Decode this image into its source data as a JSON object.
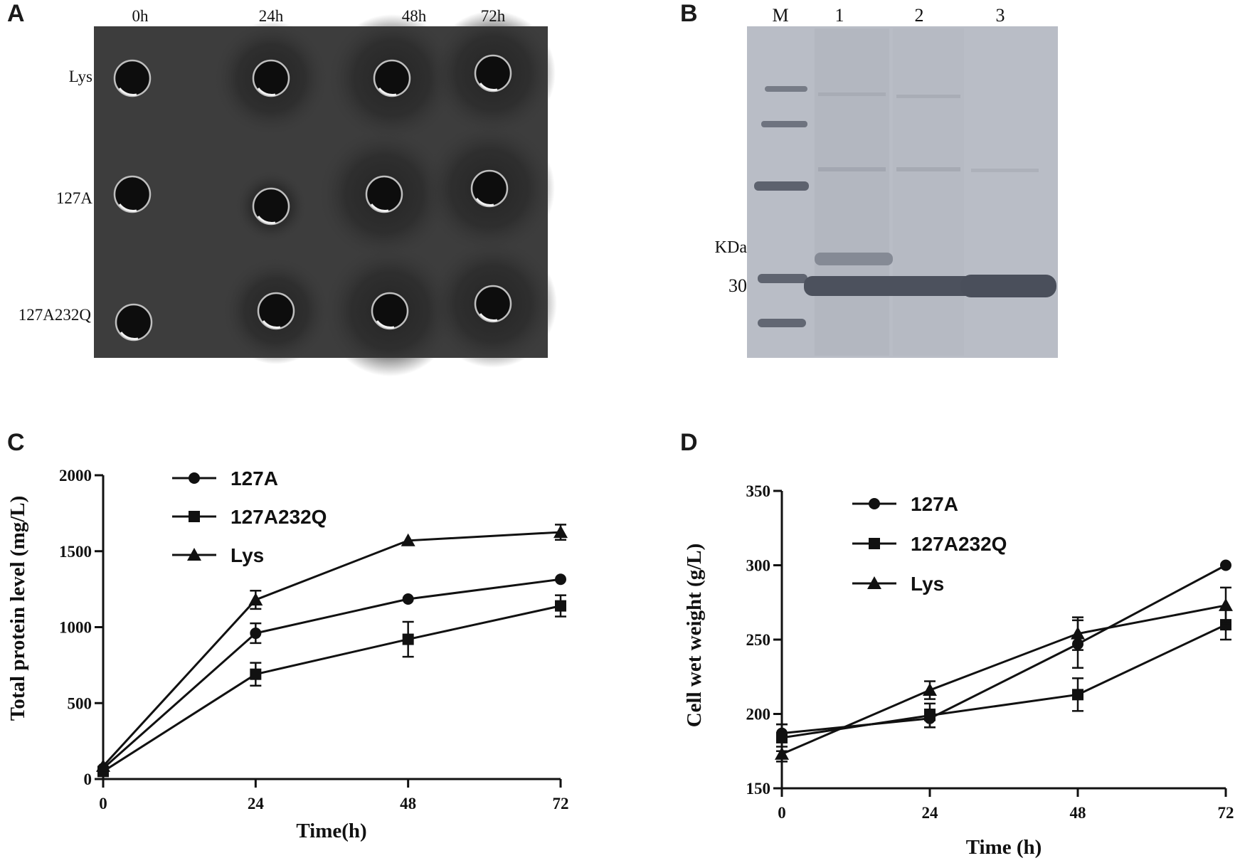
{
  "panels": {
    "a": {
      "letter": "A",
      "time_labels": [
        "0h",
        "24h",
        "48h",
        "72h"
      ],
      "row_labels": [
        "Lys",
        "127A",
        "127A232Q"
      ]
    },
    "b": {
      "letter": "B",
      "lane_labels": [
        "M",
        "1",
        "2",
        "3"
      ],
      "unit_label": "KDa",
      "marker_value": "30"
    },
    "c": {
      "letter": "C"
    },
    "d": {
      "letter": "D"
    }
  },
  "chart_data": [
    {
      "type": "line",
      "xlabel": "Time(h)",
      "ylabel": "Total protein level (mg/L)",
      "x": [
        0,
        24,
        48,
        72
      ],
      "xticks": [
        "0",
        "24",
        "48",
        "72"
      ],
      "xlim": [
        0,
        72
      ],
      "ylim": [
        0,
        2000
      ],
      "yticks": [
        "0",
        "500",
        "1000",
        "1500",
        "2000"
      ],
      "legend_position": "top-left",
      "series": [
        {
          "name": "127A",
          "marker": "circle",
          "values": [
            70,
            960,
            1185,
            1315
          ],
          "errors": [
            0,
            65,
            0,
            0
          ]
        },
        {
          "name": "127A232Q",
          "marker": "square",
          "values": [
            50,
            690,
            920,
            1140
          ],
          "errors": [
            0,
            75,
            115,
            70
          ]
        },
        {
          "name": "Lys",
          "marker": "triangle",
          "values": [
            85,
            1180,
            1570,
            1625
          ],
          "errors": [
            0,
            60,
            0,
            50
          ]
        }
      ]
    },
    {
      "type": "line",
      "xlabel": "Time (h)",
      "ylabel": "Cell wet weight (g/L)",
      "x": [
        0,
        24,
        48,
        72
      ],
      "xticks": [
        "0",
        "24",
        "48",
        "72"
      ],
      "xlim": [
        0,
        72
      ],
      "ylim": [
        150,
        350
      ],
      "yticks": [
        "150",
        "200",
        "250",
        "300",
        "350"
      ],
      "legend_position": "top-left",
      "series": [
        {
          "name": "127A",
          "marker": "circle",
          "values": [
            187,
            197,
            247,
            300
          ],
          "errors": [
            6,
            6,
            16,
            0
          ]
        },
        {
          "name": "127A232Q",
          "marker": "square",
          "values": [
            184,
            199,
            213,
            260
          ],
          "errors": [
            9,
            8,
            11,
            10
          ]
        },
        {
          "name": "Lys",
          "marker": "triangle",
          "values": [
            173,
            216,
            254,
            273
          ],
          "errors": [
            5,
            6,
            11,
            12
          ]
        }
      ]
    }
  ]
}
